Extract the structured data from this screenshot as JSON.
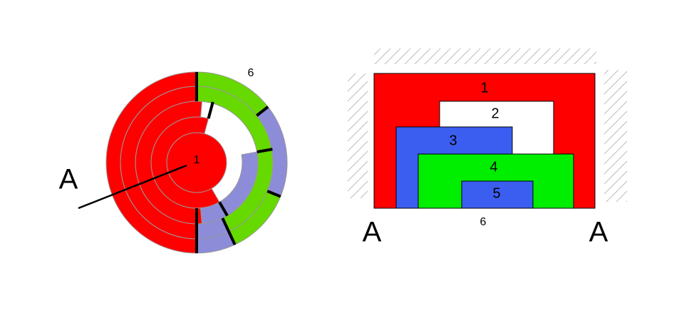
{
  "left_diagram": {
    "center_label": "1",
    "outer_label": "6",
    "axis_label": "A"
  },
  "right_diagram": {
    "region_labels": [
      "1",
      "2",
      "3",
      "4",
      "5"
    ],
    "bottom_label": "6",
    "left_axis_label": "A",
    "right_axis_label": "A"
  }
}
